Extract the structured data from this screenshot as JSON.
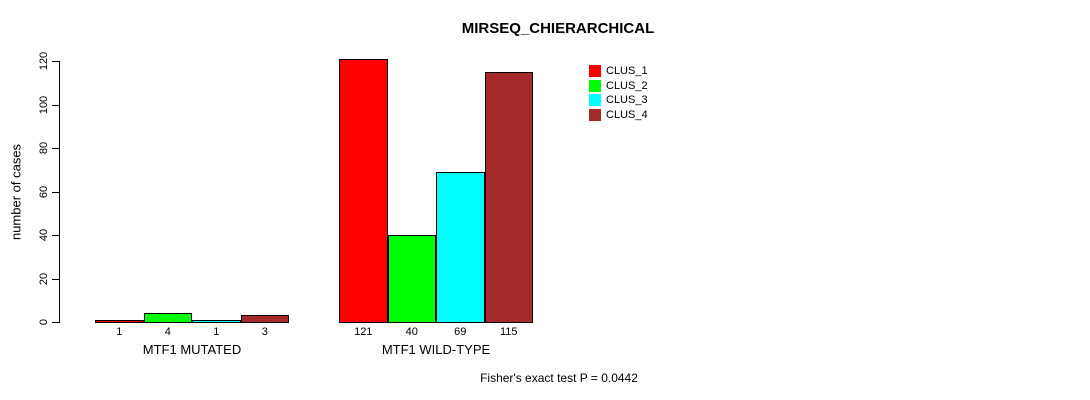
{
  "title": "MIRSEQ_CHIERARCHICAL",
  "footer": "Fisher's exact test P = 0.0442",
  "y_axis": {
    "label": "number of cases",
    "ticks": [
      0,
      20,
      40,
      60,
      80,
      100,
      120
    ]
  },
  "legend": {
    "items": [
      {
        "label": "CLUS_1",
        "color": "#FF0000"
      },
      {
        "label": "CLUS_2",
        "color": "#00FF00"
      },
      {
        "label": "CLUS_3",
        "color": "#00FFFF"
      },
      {
        "label": "CLUS_4",
        "color": "#A52A2A"
      }
    ]
  },
  "chart_data": {
    "type": "bar",
    "title": "MIRSEQ_CHIERARCHICAL",
    "xlabel": "",
    "ylabel": "number of cases",
    "ylim": [
      0,
      120
    ],
    "yticks": [
      0,
      20,
      40,
      60,
      80,
      100,
      120
    ],
    "grid": false,
    "legend_position": "top-right",
    "categories": [
      "MTF1 MUTATED",
      "MTF1 WILD-TYPE"
    ],
    "series": [
      {
        "name": "CLUS_1",
        "color": "#FF0000",
        "values": [
          1,
          121
        ]
      },
      {
        "name": "CLUS_2",
        "color": "#00FF00",
        "values": [
          4,
          40
        ]
      },
      {
        "name": "CLUS_3",
        "color": "#00FFFF",
        "values": [
          1,
          69
        ]
      },
      {
        "name": "CLUS_4",
        "color": "#A52A2A",
        "values": [
          3,
          115
        ]
      }
    ],
    "bar_value_labels": [
      [
        "1",
        "4",
        "1",
        "3"
      ],
      [
        "121",
        "40",
        "69",
        "115"
      ]
    ],
    "annotation": "Fisher's exact test P = 0.0442"
  }
}
